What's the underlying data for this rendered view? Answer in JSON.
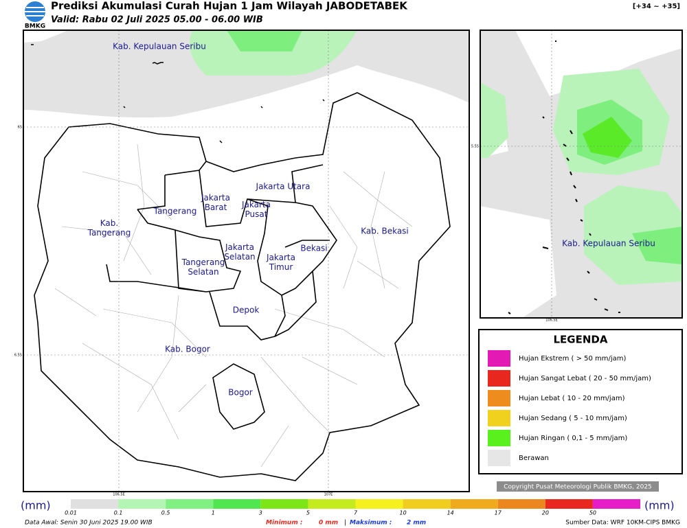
{
  "header": {
    "title": "Prediksi Akumulasi Curah Hujan 1 Jam Wilayah JABODETABEK",
    "subtitle": "Valid: Rabu 02 Juli 2025 05.00 - 06.00 WIB",
    "range": "[+34 ~ +35]",
    "logo": "BMKG"
  },
  "map": {
    "labels": [
      "Kab. Kepulauan Seribu",
      "Jakarta Utara",
      "Jakarta\nBarat",
      "Jakarta\nPusat",
      "Tangerang",
      "Kab.\nTangerang",
      "Jakarta\nSelatan",
      "Jakarta\nTimur",
      "Bekasi",
      "Kab. Bekasi",
      "Tangerang\nSelatan",
      "Depok",
      "Kab. Bogor",
      "Bogor"
    ],
    "lat_labels": [
      "6S",
      "6.5S"
    ],
    "lon_labels": [
      "106.5E",
      "107E"
    ]
  },
  "inset": {
    "label": "Kab. Kepulauan Seribu",
    "lat_label": "5.5S",
    "lon_label": "106.5E"
  },
  "legend": {
    "title": "LEGENDA",
    "items": [
      {
        "label": "Hujan Ekstrem ( > 50 mm/jam)",
        "color": "#e31ab4"
      },
      {
        "label": "Hujan Sangat Lebat ( 20 - 50 mm/jam)",
        "color": "#e8281e"
      },
      {
        "label": "Hujan Lebat ( 10 - 20 mm/jam)",
        "color": "#ef8c1e"
      },
      {
        "label": "Hujan Sedang ( 5 - 10 mm/jam)",
        "color": "#f0d21e"
      },
      {
        "label": "Hujan Ringan ( 0,1 - 5 mm/jam)",
        "color": "#5af01e"
      },
      {
        "label": "Berawan",
        "color": "#e6e6e6"
      }
    ]
  },
  "copyright": "Copyright Pusat Meteorologi Publik BMKG, 2025",
  "colorbar": {
    "unit_left": "(mm)",
    "unit_right": "(mm)",
    "ticks": [
      "0.01",
      "0.1",
      "0.5",
      "1",
      "3",
      "5",
      "7",
      "10",
      "14",
      "17",
      "20",
      "50"
    ],
    "colors": [
      "#e0e0e0",
      "#b4f5b4",
      "#80f080",
      "#50e650",
      "#7de619",
      "#c3eb1e",
      "#f5f01e",
      "#f0cd1e",
      "#f0aa1e",
      "#eb871e",
      "#e8281e",
      "#e61ec8"
    ]
  },
  "footer": {
    "data_awal": "Data Awal: Senin 30 Juni 2025 19.00 WIB",
    "min_label": "Minimum :",
    "min_value": "0 mm",
    "sep": "|",
    "max_label": "Maksimum :",
    "max_value": "2 mm",
    "source": "Sumber Data: WRF 10KM-CIPS BMKG"
  }
}
